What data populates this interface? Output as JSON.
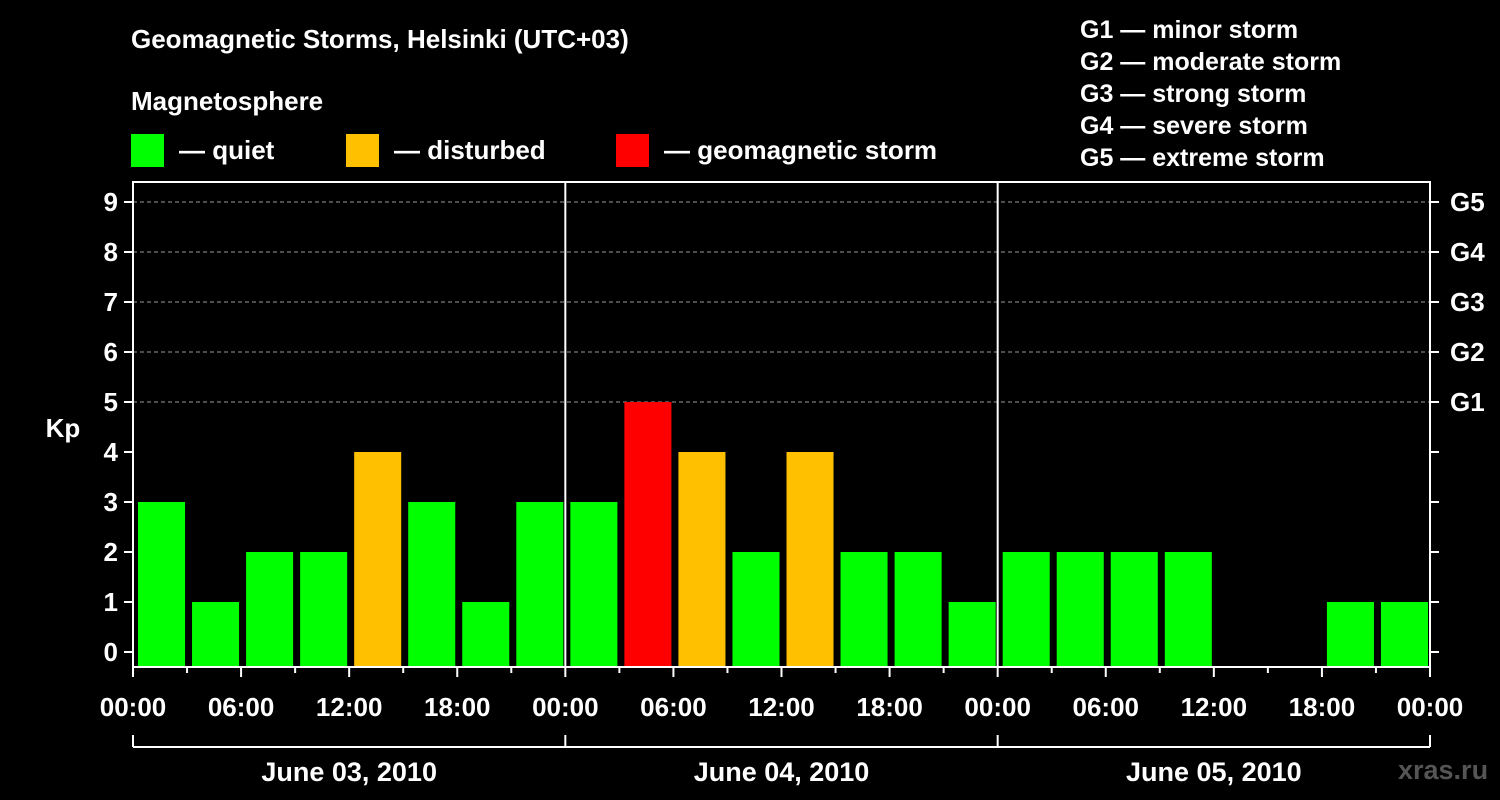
{
  "header": {
    "title": "Geomagnetic Storms, Helsinki (UTC+03)",
    "subtitle": "Magnetosphere"
  },
  "legend": [
    {
      "label": "— quiet",
      "color": "#00ff00"
    },
    {
      "label": "— disturbed",
      "color": "#ffc000"
    },
    {
      "label": "— geomagnetic storm",
      "color": "#ff0000"
    }
  ],
  "storm_scale": [
    "G1 — minor storm",
    "G2 — moderate storm",
    "G3 — strong storm",
    "G4 — severe storm",
    "G5 — extreme storm"
  ],
  "watermark": "xras.ru",
  "chart_data": {
    "type": "bar",
    "ylabel": "Kp",
    "ylim": [
      0,
      9
    ],
    "y_ticks": [
      "0",
      "1",
      "2",
      "3",
      "4",
      "5",
      "6",
      "7",
      "8",
      "9"
    ],
    "right_ticks": [
      {
        "kp": 5,
        "label": "G1"
      },
      {
        "kp": 6,
        "label": "G2"
      },
      {
        "kp": 7,
        "label": "G3"
      },
      {
        "kp": 8,
        "label": "G4"
      },
      {
        "kp": 9,
        "label": "G5"
      }
    ],
    "x_tick_labels": [
      "00:00",
      "06:00",
      "12:00",
      "18:00",
      "00:00",
      "06:00",
      "12:00",
      "18:00",
      "00:00",
      "06:00",
      "12:00",
      "18:00",
      "00:00"
    ],
    "days": [
      "June 03, 2010",
      "June 04, 2010",
      "June 05, 2010"
    ],
    "interval_hours": 3,
    "values": [
      3,
      1,
      2,
      2,
      4,
      3,
      1,
      3,
      3,
      5,
      4,
      2,
      4,
      2,
      2,
      1,
      2,
      2,
      2,
      2,
      null,
      null,
      1,
      1
    ],
    "category_colors": {
      "quiet": "#00ff00",
      "disturbed": "#ffc000",
      "storm": "#ff0000"
    },
    "grid": "dashed horizontal at Kp 5-9"
  }
}
